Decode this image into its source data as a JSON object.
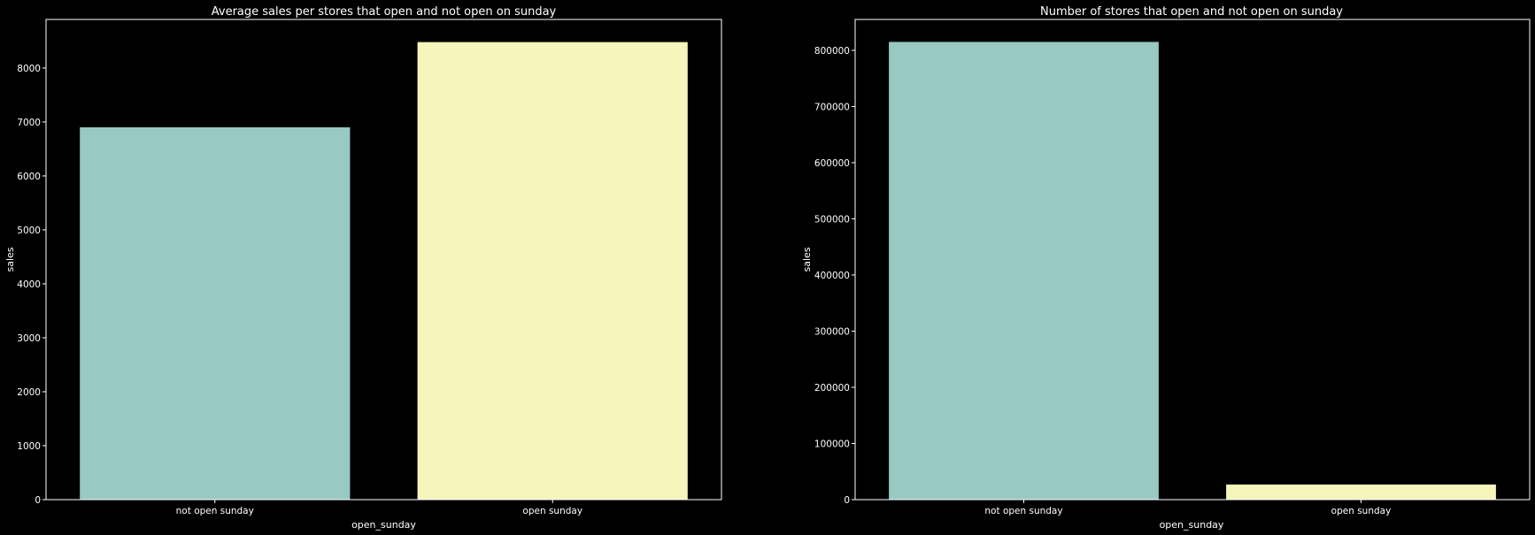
{
  "colors": {
    "background": "#000000",
    "foreground": "#ffffff",
    "series_palette": [
      "#98c9c3",
      "#f5f5bc"
    ]
  },
  "chart_data": [
    {
      "type": "bar",
      "title": "Average sales per stores that open and not open on sunday",
      "xlabel": "open_sunday",
      "ylabel": "sales",
      "categories": [
        "not open sunday",
        "open sunday"
      ],
      "values": [
        6900,
        8480
      ],
      "ylim": [
        0,
        8900
      ],
      "yticks": [
        0,
        1000,
        2000,
        3000,
        4000,
        5000,
        6000,
        7000,
        8000
      ],
      "grid": false,
      "legend": "none"
    },
    {
      "type": "bar",
      "title": "Number of stores that open and not open on sunday",
      "xlabel": "open_sunday",
      "ylabel": "sales",
      "categories": [
        "not open sunday",
        "open sunday"
      ],
      "values": [
        815000,
        27000
      ],
      "ylim": [
        0,
        855000
      ],
      "yticks": [
        0,
        100000,
        200000,
        300000,
        400000,
        500000,
        600000,
        700000,
        800000
      ],
      "grid": false,
      "legend": "none"
    }
  ]
}
